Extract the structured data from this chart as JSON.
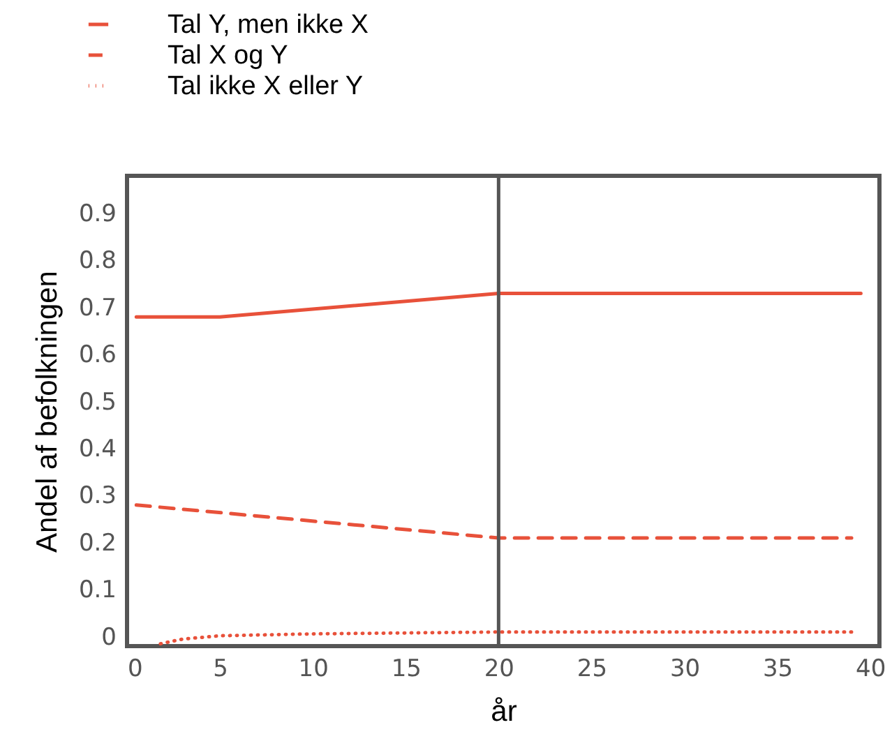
{
  "chart_data": {
    "type": "line",
    "xlabel": "år",
    "ylabel": "Andel af befolkningen",
    "legend": "top left",
    "grid": false,
    "xlim": [
      0,
      40.5
    ],
    "ylim": [
      -0.02,
      0.98
    ],
    "xticks": [
      0,
      5,
      10,
      15,
      20,
      25,
      30,
      35,
      40
    ],
    "yticks": [
      0,
      0.1,
      0.2,
      0.3,
      0.4,
      0.5,
      0.6,
      0.7,
      0.8,
      0.9
    ],
    "ref_lines": [
      {
        "axis": "x",
        "value": 20,
        "color": "#555555"
      }
    ],
    "series": [
      {
        "name": "Tal Y, men ikke X",
        "color": "#e8513a",
        "line_style": "solid",
        "x": [
          0.5,
          5,
          20,
          39.5
        ],
        "values": [
          0.68,
          0.68,
          0.73,
          0.73
        ]
      },
      {
        "name": "Tal X og Y",
        "color": "#e8513a",
        "line_style": "dashed",
        "x": [
          0.5,
          20,
          39
        ],
        "values": [
          0.28,
          0.21,
          0.21
        ]
      },
      {
        "name": "Tal ikke X eller Y",
        "color": "#e8513a",
        "line_style": "dotted",
        "x": [
          1.8,
          3,
          5,
          10,
          20,
          39
        ],
        "values": [
          -0.015,
          -0.005,
          0.002,
          0.006,
          0.01,
          0.01
        ]
      }
    ]
  }
}
